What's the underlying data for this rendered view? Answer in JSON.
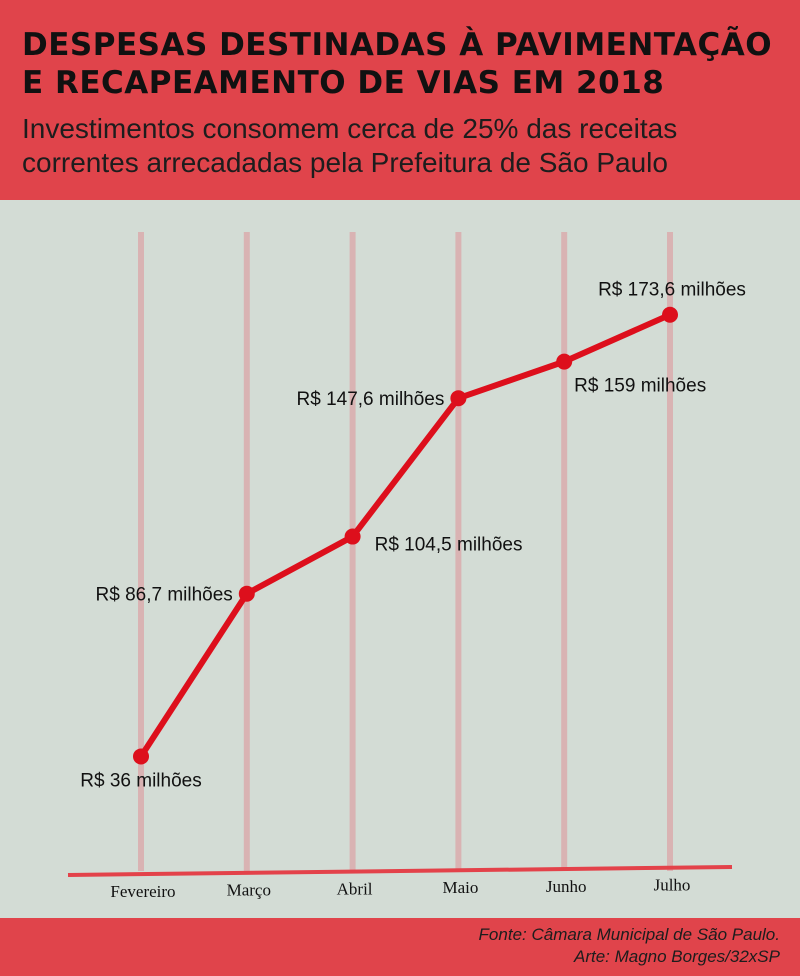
{
  "header": {
    "title_line1": "DESPESAS DESTINADAS À PAVIMENTAÇÃO",
    "title_line2": "E RECAPEAMENTO DE VIAS EM 2018",
    "subtitle_line1": "Investimentos consomem cerca de 25% das receitas",
    "subtitle_line2": "correntes arrecadadas pela Prefeitura de São Paulo"
  },
  "footer": {
    "source": "Fonte: Câmara Municipal de São Paulo.",
    "credit": "Arte: Magno Borges/32xSP"
  },
  "colors": {
    "header_bg": "#e0444b",
    "plot_bg": "#d3dcd5",
    "line": "#dd0f1c",
    "gridline": "#d9b3b3",
    "axis": "#e3424a"
  },
  "chart_data": {
    "type": "line",
    "title": "DESPESAS DESTINADAS À PAVIMENTAÇÃO E RECAPEAMENTO DE VIAS EM 2018",
    "subtitle": "Investimentos consomem cerca de 25% das receitas correntes arrecadadas pela Prefeitura de São Paulo",
    "categories": [
      "Fevereiro",
      "Março",
      "Abril",
      "Maio",
      "Junho",
      "Julho"
    ],
    "values": [
      36,
      86.7,
      104.5,
      147.6,
      159,
      173.6
    ],
    "data_labels": [
      "R$ 36 milhões",
      "R$ 86,7 milhões",
      "R$ 104,5 milhões",
      "R$ 147,6 milhões",
      "R$ 159 milhões",
      "R$ 173,6 milhões"
    ],
    "label_positions": [
      "below",
      "left",
      "right",
      "left",
      "below",
      "above"
    ],
    "ylim": [
      0,
      200
    ],
    "grid": "vertical",
    "xlabel": "",
    "ylabel": ""
  }
}
